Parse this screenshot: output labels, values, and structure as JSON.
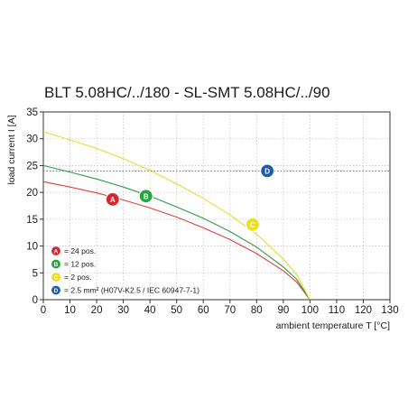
{
  "chart_data": {
    "type": "line",
    "title": "BLT 5.08HC/../180 - SL-SMT 5.08HC/../90",
    "xlabel": "ambient temperature T [°C]",
    "ylabel": "load current I [A]",
    "xlim": [
      0,
      130
    ],
    "ylim": [
      0,
      35
    ],
    "x_ticks": [
      0,
      10,
      20,
      30,
      40,
      50,
      60,
      70,
      80,
      90,
      100,
      110,
      120,
      130
    ],
    "y_ticks": [
      0,
      5,
      10,
      15,
      20,
      25,
      30,
      35
    ],
    "grid": true,
    "series": [
      {
        "marker": "A",
        "legend": "= 24 pos.",
        "color": "#d9433a",
        "style": "solid",
        "x": [
          0,
          10,
          20,
          30,
          40,
          50,
          60,
          70,
          80,
          90,
          95,
          100
        ],
        "y": [
          22.0,
          21.0,
          19.9,
          18.6,
          17.1,
          15.4,
          13.4,
          11.2,
          8.6,
          5.4,
          3.3,
          0
        ],
        "marker_position": [
          26,
          18.7
        ]
      },
      {
        "marker": "B",
        "legend": "= 12 pos.",
        "color": "#2e9a48",
        "style": "solid",
        "x": [
          0,
          10,
          20,
          30,
          40,
          50,
          60,
          70,
          80,
          90,
          95,
          100
        ],
        "y": [
          25.0,
          23.8,
          22.5,
          21.0,
          19.3,
          17.3,
          15.2,
          12.7,
          9.8,
          6.1,
          3.8,
          0
        ],
        "marker_position": [
          38.5,
          19.3
        ]
      },
      {
        "marker": "C",
        "legend": "= 2 pos.",
        "color": "#e8dc2c",
        "style": "solid",
        "x": [
          0,
          10,
          20,
          30,
          40,
          50,
          60,
          70,
          80,
          90,
          95,
          100
        ],
        "y": [
          31.3,
          29.8,
          28.2,
          26.3,
          24.1,
          21.6,
          18.9,
          15.8,
          12.2,
          7.6,
          4.7,
          0
        ],
        "marker_position": [
          78.5,
          14.0
        ]
      },
      {
        "marker": "D",
        "legend": "= 2.5 mm² (H07V-K2.5 / IEC 60947-7-1)",
        "color": "#2f7fc8",
        "style": "dotted",
        "x": [
          0,
          130
        ],
        "y": [
          24,
          24
        ],
        "marker_position": [
          84,
          24
        ]
      }
    ],
    "marker_colors": {
      "A": "#d7262d",
      "B": "#24a33f",
      "C": "#ecdf1d",
      "D": "#1a5da8"
    },
    "legend_position": "lower-left"
  }
}
